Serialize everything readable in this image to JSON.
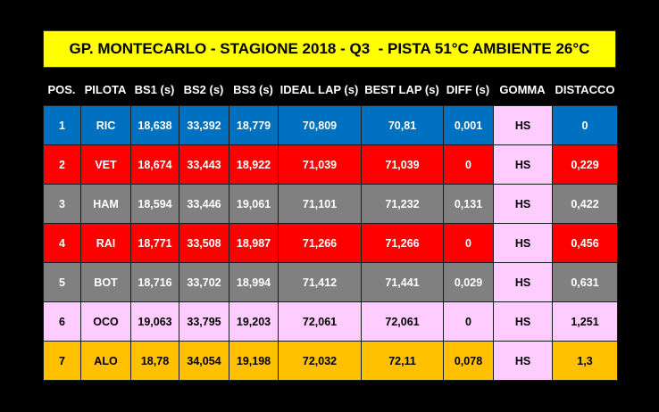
{
  "title": "GP. MONTECARLO - STAGIONE 2018 - Q3  - PISTA 51°C AMBIENTE 26°C",
  "headers": [
    "POS.",
    "PILOTA",
    "BS1 (s)",
    "BS2 (s)",
    "BS3 (s)",
    "IDEAL LAP (s)",
    "BEST LAP (s)",
    "DIFF (s)",
    "GOMMA",
    "DISTACCO"
  ],
  "colors": {
    "title_bg": "#ffff00",
    "gomma_bg": "#ffccff",
    "ric": "#0070c0",
    "ferrari": "#ff0000",
    "mercedes": "#808080",
    "force_india": "#ffccff",
    "mclaren": "#ffc000"
  },
  "rows": [
    {
      "pos": "1",
      "pilota": "RIC",
      "bs1": "18,638",
      "bs2": "33,392",
      "bs3": "18,779",
      "ideal": "70,809",
      "best": "70,81",
      "diff": "0,001",
      "gomma": "HS",
      "distacco": "0",
      "color": "#0070c0",
      "text": "#ffffff"
    },
    {
      "pos": "2",
      "pilota": "VET",
      "bs1": "18,674",
      "bs2": "33,443",
      "bs3": "18,922",
      "ideal": "71,039",
      "best": "71,039",
      "diff": "0",
      "gomma": "HS",
      "distacco": "0,229",
      "color": "#ff0000",
      "text": "#ffffff"
    },
    {
      "pos": "3",
      "pilota": "HAM",
      "bs1": "18,594",
      "bs2": "33,446",
      "bs3": "19,061",
      "ideal": "71,101",
      "best": "71,232",
      "diff": "0,131",
      "gomma": "HS",
      "distacco": "0,422",
      "color": "#808080",
      "text": "#ffffff"
    },
    {
      "pos": "4",
      "pilota": "RAI",
      "bs1": "18,771",
      "bs2": "33,508",
      "bs3": "18,987",
      "ideal": "71,266",
      "best": "71,266",
      "diff": "0",
      "gomma": "HS",
      "distacco": "0,456",
      "color": "#ff0000",
      "text": "#ffffff"
    },
    {
      "pos": "5",
      "pilota": "BOT",
      "bs1": "18,716",
      "bs2": "33,702",
      "bs3": "18,994",
      "ideal": "71,412",
      "best": "71,441",
      "diff": "0,029",
      "gomma": "HS",
      "distacco": "0,631",
      "color": "#808080",
      "text": "#ffffff"
    },
    {
      "pos": "6",
      "pilota": "OCO",
      "bs1": "19,063",
      "bs2": "33,795",
      "bs3": "19,203",
      "ideal": "72,061",
      "best": "72,061",
      "diff": "0",
      "gomma": "HS",
      "distacco": "1,251",
      "color": "#ffccff",
      "text": "#000000"
    },
    {
      "pos": "7",
      "pilota": "ALO",
      "bs1": "18,78",
      "bs2": "34,054",
      "bs3": "19,198",
      "ideal": "72,032",
      "best": "72,11",
      "diff": "0,078",
      "gomma": "HS",
      "distacco": "1,3",
      "color": "#ffc000",
      "text": "#000000"
    }
  ]
}
